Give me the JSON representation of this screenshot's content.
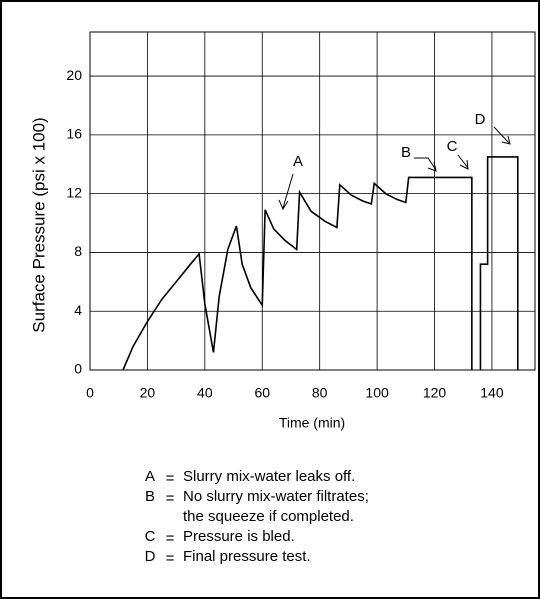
{
  "chart_data": {
    "type": "line",
    "y_label": "Surface Pressure (psi x 100)",
    "x_label": "Time (min)",
    "xlim": [
      0,
      155
    ],
    "xticks": [
      0,
      20,
      40,
      60,
      80,
      100,
      120,
      140
    ],
    "ylim": [
      0,
      23
    ],
    "yticks": [
      0,
      4,
      8,
      12,
      16,
      20
    ],
    "grid": true,
    "series": [
      {
        "color": "#000000",
        "x": [
          11.5,
          15,
          20,
          25,
          30,
          35,
          38,
          40,
          43,
          45,
          48,
          51,
          53,
          56,
          60,
          61,
          64,
          68,
          72,
          73,
          77,
          82,
          86,
          87,
          91,
          95,
          98,
          99,
          103,
          107,
          110,
          111,
          133,
          133,
          null,
          136,
          136,
          138.5,
          138.5,
          149,
          149
        ],
        "values": [
          0,
          1.6,
          3.3,
          4.8,
          6.0,
          7.2,
          7.9,
          4.5,
          1.2,
          5.0,
          8.2,
          9.8,
          7.2,
          5.6,
          4.4,
          10.9,
          9.6,
          8.8,
          8.2,
          12.1,
          10.8,
          10.1,
          9.7,
          12.6,
          11.9,
          11.5,
          11.3,
          12.7,
          12.0,
          11.6,
          11.4,
          13.1,
          13.1,
          0,
          null,
          0,
          7.2,
          7.2,
          14.5,
          14.5,
          0
        ]
      }
    ],
    "annotations": [
      "A",
      "B",
      "C",
      "D"
    ],
    "separator": "=",
    "notes": [
      {
        "key": "A",
        "text": [
          "Slurry mix-water leaks off."
        ]
      },
      {
        "key": "B",
        "text": [
          "No slurry mix-water filtrates;",
          "the squeeze if completed."
        ]
      },
      {
        "key": "C",
        "text": [
          "Pressure is bled."
        ]
      },
      {
        "key": "D",
        "text": [
          "Final pressure test."
        ]
      }
    ]
  }
}
